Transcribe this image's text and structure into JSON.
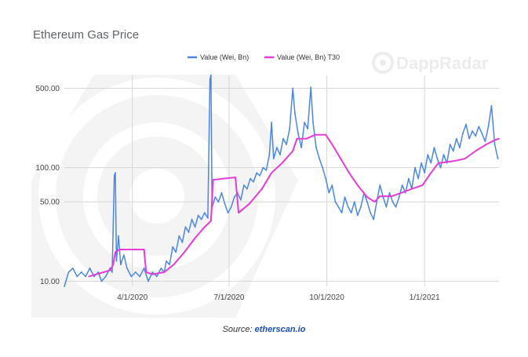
{
  "watermark": "DappRadar",
  "source": {
    "prefix": "Source:",
    "link": "etherscan.io"
  },
  "chart_data": {
    "type": "line",
    "title": "Ethereum Gas Price",
    "y_scale": "log",
    "ylim": [
      9,
      650
    ],
    "y_ticks": [
      {
        "value": 10,
        "label": "10.00"
      },
      {
        "value": 50,
        "label": "50.00"
      },
      {
        "value": 100,
        "label": "100.00"
      },
      {
        "value": 500,
        "label": "500.00"
      }
    ],
    "xlim": [
      "2020-01-28",
      "2021-03-12"
    ],
    "x_ticks": [
      {
        "value": "2020-04-01",
        "label": "4/1/2020"
      },
      {
        "value": "2020-07-01",
        "label": "7/1/2020"
      },
      {
        "value": "2020-10-01",
        "label": "10/1/2020"
      },
      {
        "value": "2021-01-01",
        "label": "1/1/2021"
      }
    ],
    "grid": true,
    "legend_position": "top",
    "series": [
      {
        "name": "Value (Wei, Bn)",
        "color": "#4a86e8",
        "points": [
          [
            "2020-01-28",
            9
          ],
          [
            "2020-02-01",
            12
          ],
          [
            "2020-02-05",
            13
          ],
          [
            "2020-02-09",
            11
          ],
          [
            "2020-02-13",
            12
          ],
          [
            "2020-02-17",
            11
          ],
          [
            "2020-02-21",
            13
          ],
          [
            "2020-02-25",
            11
          ],
          [
            "2020-02-29",
            12
          ],
          [
            "2020-03-03",
            10
          ],
          [
            "2020-03-07",
            11
          ],
          [
            "2020-03-11",
            13
          ],
          [
            "2020-03-13",
            12
          ],
          [
            "2020-03-15",
            85
          ],
          [
            "2020-03-16",
            90
          ],
          [
            "2020-03-17",
            15
          ],
          [
            "2020-03-19",
            25
          ],
          [
            "2020-03-21",
            14
          ],
          [
            "2020-03-24",
            17
          ],
          [
            "2020-03-27",
            13
          ],
          [
            "2020-03-31",
            11
          ],
          [
            "2020-04-04",
            12
          ],
          [
            "2020-04-08",
            11
          ],
          [
            "2020-04-12",
            13
          ],
          [
            "2020-04-16",
            10
          ],
          [
            "2020-04-20",
            12
          ],
          [
            "2020-04-24",
            11
          ],
          [
            "2020-04-28",
            13
          ],
          [
            "2020-05-01",
            12
          ],
          [
            "2020-05-03",
            15
          ],
          [
            "2020-05-06",
            14
          ],
          [
            "2020-05-09",
            20
          ],
          [
            "2020-05-12",
            18
          ],
          [
            "2020-05-15",
            25
          ],
          [
            "2020-05-18",
            22
          ],
          [
            "2020-05-21",
            30
          ],
          [
            "2020-05-24",
            27
          ],
          [
            "2020-05-27",
            35
          ],
          [
            "2020-05-30",
            30
          ],
          [
            "2020-06-02",
            38
          ],
          [
            "2020-06-05",
            35
          ],
          [
            "2020-06-08",
            40
          ],
          [
            "2020-06-11",
            36
          ],
          [
            "2020-06-13",
            600
          ],
          [
            "2020-06-14",
            650
          ],
          [
            "2020-06-15",
            45
          ],
          [
            "2020-06-18",
            55
          ],
          [
            "2020-06-21",
            50
          ],
          [
            "2020-06-24",
            60
          ],
          [
            "2020-06-27",
            48
          ],
          [
            "2020-06-30",
            40
          ],
          [
            "2020-07-03",
            45
          ],
          [
            "2020-07-06",
            55
          ],
          [
            "2020-07-09",
            60
          ],
          [
            "2020-07-12",
            52
          ],
          [
            "2020-07-15",
            70
          ],
          [
            "2020-07-18",
            65
          ],
          [
            "2020-07-21",
            80
          ],
          [
            "2020-07-24",
            75
          ],
          [
            "2020-07-27",
            90
          ],
          [
            "2020-07-30",
            85
          ],
          [
            "2020-08-02",
            100
          ],
          [
            "2020-08-05",
            95
          ],
          [
            "2020-08-08",
            130
          ],
          [
            "2020-08-10",
            250
          ],
          [
            "2020-08-12",
            120
          ],
          [
            "2020-08-15",
            150
          ],
          [
            "2020-08-18",
            130
          ],
          [
            "2020-08-21",
            180
          ],
          [
            "2020-08-24",
            160
          ],
          [
            "2020-08-27",
            220
          ],
          [
            "2020-08-30",
            500
          ],
          [
            "2020-09-01",
            300
          ],
          [
            "2020-09-04",
            200
          ],
          [
            "2020-09-07",
            150
          ],
          [
            "2020-09-10",
            250
          ],
          [
            "2020-09-13",
            220
          ],
          [
            "2020-09-16",
            510
          ],
          [
            "2020-09-18",
            250
          ],
          [
            "2020-09-21",
            150
          ],
          [
            "2020-09-24",
            120
          ],
          [
            "2020-09-27",
            100
          ],
          [
            "2020-09-30",
            80
          ],
          [
            "2020-10-03",
            60
          ],
          [
            "2020-10-06",
            70
          ],
          [
            "2020-10-09",
            50
          ],
          [
            "2020-10-12",
            45
          ],
          [
            "2020-10-15",
            40
          ],
          [
            "2020-10-18",
            55
          ],
          [
            "2020-10-21",
            45
          ],
          [
            "2020-10-24",
            40
          ],
          [
            "2020-10-27",
            50
          ],
          [
            "2020-10-30",
            38
          ],
          [
            "2020-11-02",
            45
          ],
          [
            "2020-11-05",
            60
          ],
          [
            "2020-11-08",
            50
          ],
          [
            "2020-11-11",
            40
          ],
          [
            "2020-11-14",
            35
          ],
          [
            "2020-11-17",
            50
          ],
          [
            "2020-11-20",
            70
          ],
          [
            "2020-11-23",
            55
          ],
          [
            "2020-11-26",
            45
          ],
          [
            "2020-11-29",
            60
          ],
          [
            "2020-12-02",
            50
          ],
          [
            "2020-12-05",
            45
          ],
          [
            "2020-12-08",
            55
          ],
          [
            "2020-12-11",
            70
          ],
          [
            "2020-12-14",
            60
          ],
          [
            "2020-12-17",
            80
          ],
          [
            "2020-12-20",
            65
          ],
          [
            "2020-12-23",
            100
          ],
          [
            "2020-12-26",
            80
          ],
          [
            "2020-12-29",
            110
          ],
          [
            "2021-01-01",
            90
          ],
          [
            "2021-01-04",
            130
          ],
          [
            "2021-01-07",
            110
          ],
          [
            "2021-01-10",
            150
          ],
          [
            "2021-01-13",
            120
          ],
          [
            "2021-01-16",
            100
          ],
          [
            "2021-01-19",
            130
          ],
          [
            "2021-01-22",
            110
          ],
          [
            "2021-01-25",
            160
          ],
          [
            "2021-01-28",
            140
          ],
          [
            "2021-01-31",
            180
          ],
          [
            "2021-02-03",
            150
          ],
          [
            "2021-02-06",
            200
          ],
          [
            "2021-02-09",
            240
          ],
          [
            "2021-02-12",
            180
          ],
          [
            "2021-02-15",
            210
          ],
          [
            "2021-02-18",
            190
          ],
          [
            "2021-02-21",
            230
          ],
          [
            "2021-02-24",
            200
          ],
          [
            "2021-02-27",
            170
          ],
          [
            "2021-03-02",
            230
          ],
          [
            "2021-03-05",
            350
          ],
          [
            "2021-03-08",
            160
          ],
          [
            "2021-03-11",
            120
          ]
        ]
      },
      {
        "name": "Value (Wei, Bn) T30",
        "color": "#e63bd6",
        "points": [
          [
            "2020-02-20",
            11
          ],
          [
            "2020-02-27",
            11.5
          ],
          [
            "2020-03-05",
            12
          ],
          [
            "2020-03-11",
            12.5
          ],
          [
            "2020-03-14",
            14
          ],
          [
            "2020-03-16",
            18
          ],
          [
            "2020-03-20",
            19
          ],
          [
            "2020-03-26",
            19
          ],
          [
            "2020-04-05",
            19
          ],
          [
            "2020-04-12",
            19
          ],
          [
            "2020-04-14",
            12
          ],
          [
            "2020-04-20",
            11.5
          ],
          [
            "2020-05-01",
            12
          ],
          [
            "2020-05-10",
            14
          ],
          [
            "2020-05-20",
            18
          ],
          [
            "2020-05-30",
            24
          ],
          [
            "2020-06-08",
            30
          ],
          [
            "2020-06-14",
            34
          ],
          [
            "2020-06-16",
            78
          ],
          [
            "2020-06-25",
            80
          ],
          [
            "2020-07-07",
            82
          ],
          [
            "2020-07-10",
            40
          ],
          [
            "2020-07-20",
            48
          ],
          [
            "2020-08-01",
            65
          ],
          [
            "2020-08-10",
            90
          ],
          [
            "2020-08-20",
            110
          ],
          [
            "2020-08-30",
            140
          ],
          [
            "2020-09-03",
            180
          ],
          [
            "2020-09-12",
            180
          ],
          [
            "2020-09-20",
            195
          ],
          [
            "2020-09-30",
            195
          ],
          [
            "2020-10-06",
            160
          ],
          [
            "2020-10-14",
            120
          ],
          [
            "2020-10-22",
            90
          ],
          [
            "2020-10-30",
            70
          ],
          [
            "2020-11-08",
            55
          ],
          [
            "2020-11-15",
            50
          ],
          [
            "2020-11-20",
            56
          ],
          [
            "2020-12-01",
            56
          ],
          [
            "2020-12-10",
            60
          ],
          [
            "2020-12-20",
            65
          ],
          [
            "2020-12-30",
            70
          ],
          [
            "2021-01-07",
            90
          ],
          [
            "2021-01-14",
            110
          ],
          [
            "2021-01-22",
            112
          ],
          [
            "2021-01-30",
            115
          ],
          [
            "2021-02-08",
            120
          ],
          [
            "2021-02-18",
            140
          ],
          [
            "2021-02-28",
            160
          ],
          [
            "2021-03-08",
            175
          ],
          [
            "2021-03-12",
            180
          ]
        ]
      }
    ]
  }
}
